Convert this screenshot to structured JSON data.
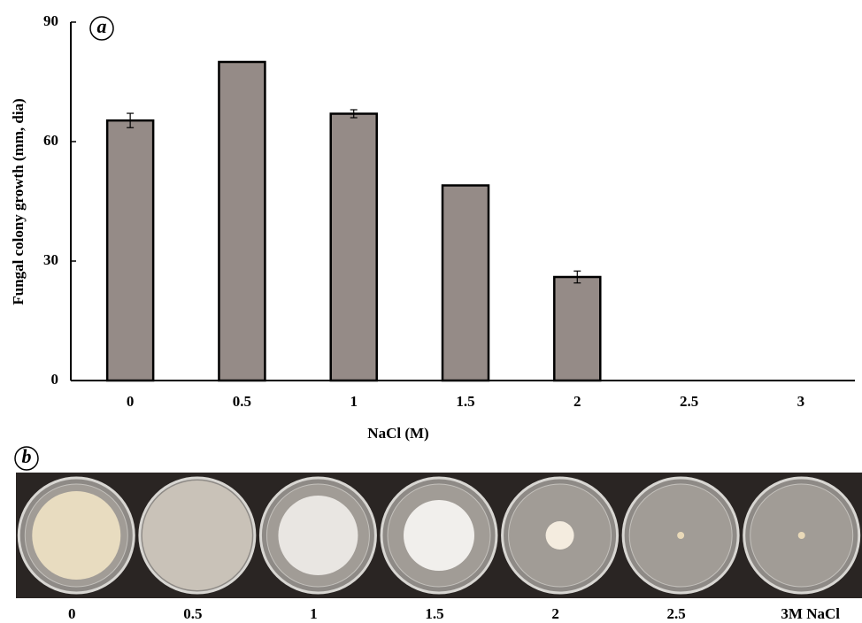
{
  "chart_data": {
    "type": "bar",
    "panel_label": "a",
    "categories": [
      "0",
      "0.5",
      "1",
      "1.5",
      "2",
      "2.5",
      "3"
    ],
    "values": [
      65.3,
      80,
      67,
      49,
      26,
      0,
      0
    ],
    "errors": [
      1.8,
      0,
      1,
      0,
      1.5,
      0,
      0
    ],
    "color": "#958b87",
    "ylim": [
      0,
      90
    ],
    "yticks": [
      0,
      30,
      60,
      90
    ],
    "y_label": "Fungal colony growth (mm, dia)",
    "x_label": "NaCl  (M)"
  },
  "photo_panel": {
    "panel_label": "b",
    "plate_labels": [
      "0",
      "0.5",
      "1",
      "1.5",
      "2",
      "2.5",
      "3M  NaCl"
    ]
  }
}
